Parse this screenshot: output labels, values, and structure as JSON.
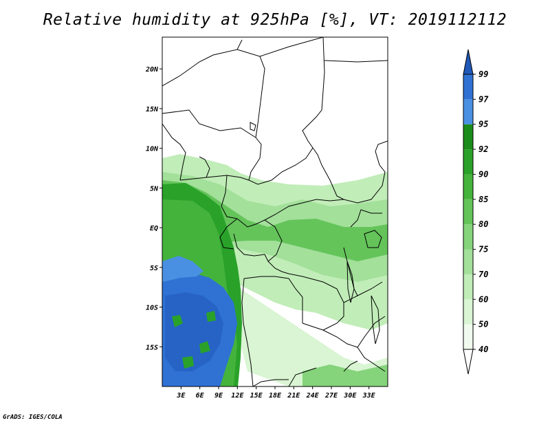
{
  "title": "Relative humidity at 925hPa [%], VT: 2019112112",
  "credit": "GrADS: IGES/COLA",
  "map": {
    "projection": "latlon",
    "lon_range": [
      0,
      36
    ],
    "lat_range": [
      -20,
      24
    ],
    "x_ticks": [
      {
        "lon": 3,
        "label": "3E"
      },
      {
        "lon": 6,
        "label": "6E"
      },
      {
        "lon": 9,
        "label": "9E"
      },
      {
        "lon": 12,
        "label": "12E"
      },
      {
        "lon": 15,
        "label": "15E"
      },
      {
        "lon": 18,
        "label": "18E"
      },
      {
        "lon": 21,
        "label": "21E"
      },
      {
        "lon": 24,
        "label": "24E"
      },
      {
        "lon": 27,
        "label": "27E"
      },
      {
        "lon": 30,
        "label": "30E"
      },
      {
        "lon": 33,
        "label": "33E"
      }
    ],
    "y_ticks": [
      {
        "lat": 20,
        "label": "20N"
      },
      {
        "lat": 15,
        "label": "15N"
      },
      {
        "lat": 10,
        "label": "10N"
      },
      {
        "lat": 5,
        "label": "5N"
      },
      {
        "lat": 0,
        "label": "EQ"
      },
      {
        "lat": -5,
        "label": "5S"
      },
      {
        "lat": -10,
        "label": "10S"
      },
      {
        "lat": -15,
        "label": "15S"
      }
    ]
  },
  "colorbar": {
    "levels": [
      "40",
      "50",
      "60",
      "70",
      "75",
      "80",
      "85",
      "90",
      "92",
      "95",
      "97",
      "99"
    ],
    "colors": [
      "#f0fbee",
      "#d9f5d3",
      "#c1edb8",
      "#a3e09a",
      "#85d37b",
      "#64c45a",
      "#44b33c",
      "#2aa22a",
      "#1a8c1a",
      "#4a90e2",
      "#2f72d4",
      "#1f58b8"
    ]
  },
  "colors": {
    "border": "#000000",
    "land_low": "#f0fbee",
    "humid_green": "#44b33c",
    "very_humid_blue": "#2f72d4"
  }
}
